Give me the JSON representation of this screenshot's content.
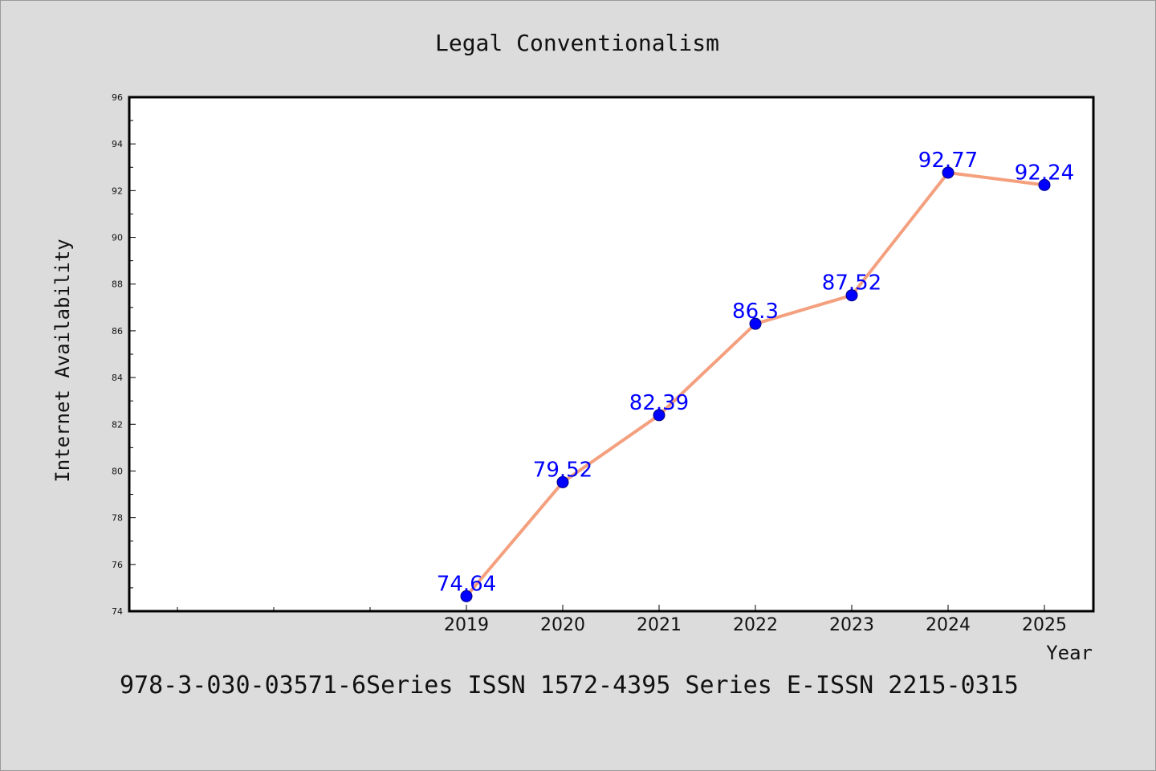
{
  "chart_data": {
    "type": "line",
    "title": "Legal Conventionalism",
    "xlabel": "Year",
    "ylabel": "Internet Availability",
    "categories": [
      "2019",
      "2020",
      "2021",
      "2022",
      "2023",
      "2024",
      "2025"
    ],
    "series": [
      {
        "values": [
          74.64,
          79.52,
          82.39,
          86.3,
          87.52,
          92.77,
          92.24
        ],
        "labels": [
          "74.64",
          "79.52",
          "82.39",
          "86.3",
          "87.52",
          "92.77",
          "92.24"
        ]
      }
    ],
    "ylim": [
      74,
      96
    ],
    "yticks": [
      "74",
      "76",
      "78",
      "80",
      "82",
      "84",
      "86",
      "88",
      "90",
      "92",
      "94",
      "96"
    ],
    "grid": false,
    "legend": "none",
    "colors": {
      "line": "#f4a07f",
      "marker": "#0000ff",
      "data_label": "#0000ff",
      "frame": "#000000",
      "plot_background": "#ffffff",
      "figure_background": "#dcdcdc"
    }
  },
  "footer": {
    "text": "978-3-030-03571-6Series ISSN 1572-4395 Series E-ISSN 2215-0315"
  }
}
